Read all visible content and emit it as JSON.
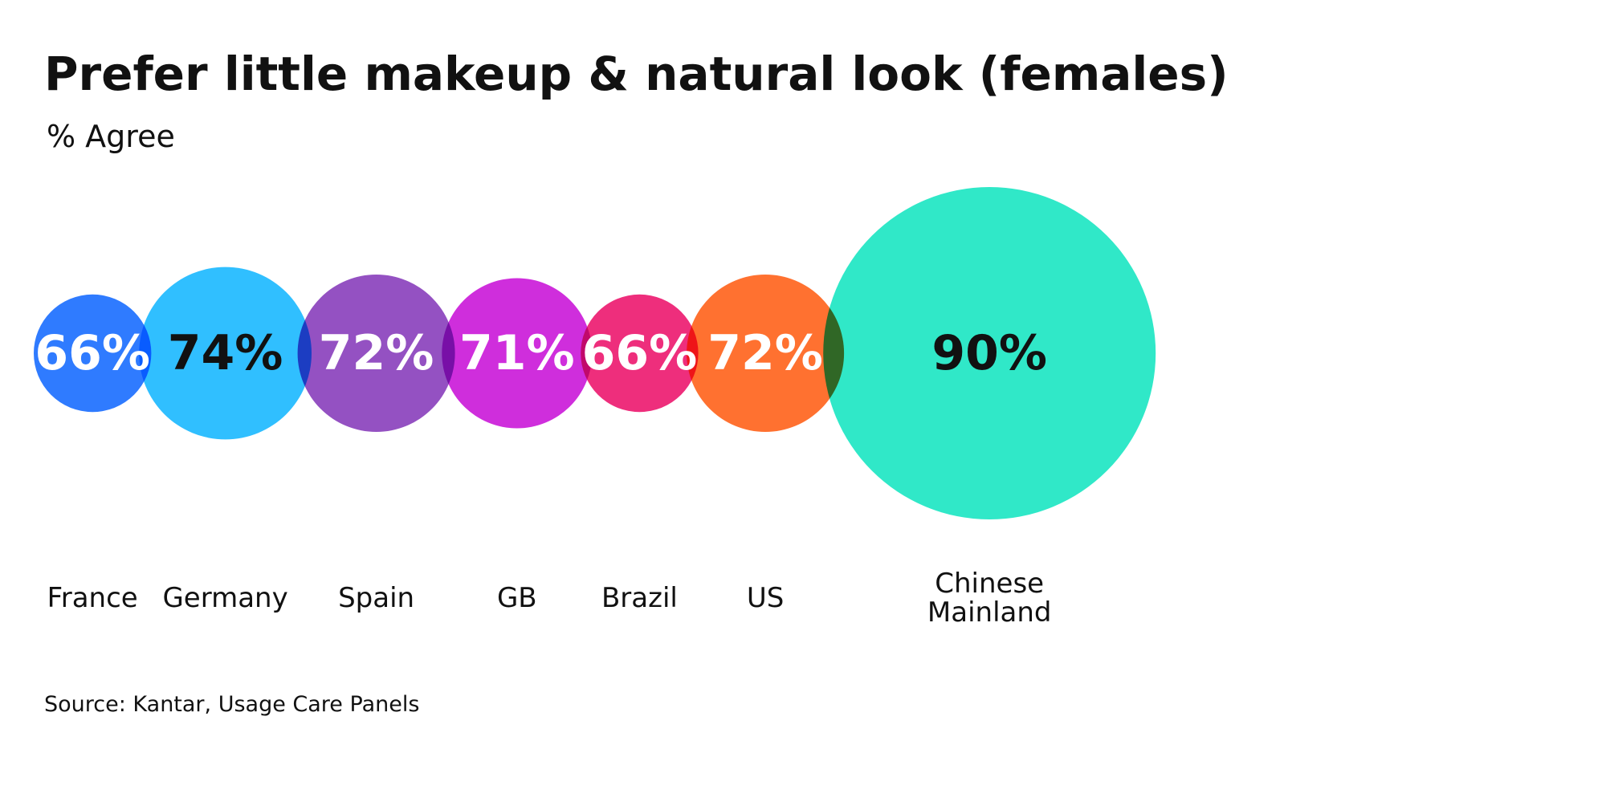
{
  "chart_data": {
    "type": "bubble",
    "title": "Prefer little makeup & natural look (females)",
    "subtitle": "% Agree",
    "source": "Source: Kantar, Usage Care Panels",
    "unit": "%",
    "categories": [
      {
        "name": "France",
        "lines": [
          "France"
        ],
        "value": 66,
        "label": "66%",
        "color": "#2f7bff",
        "label_color": "#ffffff"
      },
      {
        "name": "Germany",
        "lines": [
          "Germany"
        ],
        "value": 74,
        "label": "74%",
        "color": "#30bfff",
        "label_color": "#111111"
      },
      {
        "name": "Spain",
        "lines": [
          "Spain"
        ],
        "value": 72,
        "label": "72%",
        "color": "#9451c2",
        "label_color": "#ffffff"
      },
      {
        "name": "GB",
        "lines": [
          "GB"
        ],
        "value": 71,
        "label": "71%",
        "color": "#cf2edc",
        "label_color": "#ffffff"
      },
      {
        "name": "Brazil",
        "lines": [
          "Brazil"
        ],
        "value": 66,
        "label": "66%",
        "color": "#ee2e7c",
        "label_color": "#ffffff"
      },
      {
        "name": "US",
        "lines": [
          "US"
        ],
        "value": 72,
        "label": "72%",
        "color": "#ff7130",
        "label_color": "#ffffff"
      },
      {
        "name": "Chinese Mainland",
        "lines": [
          "Chinese",
          "Mainland"
        ],
        "value": 90,
        "label": "90%",
        "color": "#30e8c8",
        "label_color": "#111111"
      }
    ]
  }
}
